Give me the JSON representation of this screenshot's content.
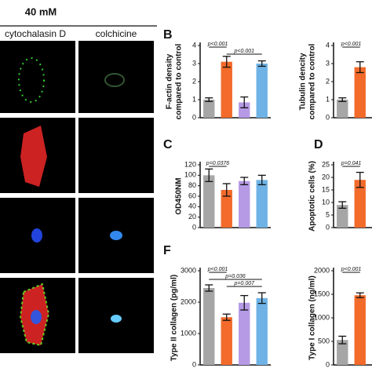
{
  "figure": {
    "concentration": "40 mM",
    "columns": [
      "cytochalasin D",
      "colchicine"
    ]
  },
  "chart_data": [
    {
      "type": "bar",
      "panel": "B",
      "ylabel": [
        "F-actin density",
        "compared to control"
      ],
      "ylim": [
        0,
        4
      ],
      "yticks": [
        0,
        1,
        2,
        3,
        4
      ],
      "values": [
        1.0,
        3.1,
        0.85,
        3.0
      ],
      "errors": [
        0.1,
        0.3,
        0.3,
        0.15
      ],
      "colors": [
        "#a6a6a6",
        "#f26b2b",
        "#b69ae6",
        "#6fb3e6"
      ],
      "annotations": [
        "p<0.001",
        "p<0.001"
      ]
    },
    {
      "type": "bar",
      "ylabel": [
        "Tubulin dencity",
        "compared to control"
      ],
      "ylim": [
        0,
        4
      ],
      "yticks": [
        0,
        1,
        2,
        3,
        4
      ],
      "values": [
        1.0,
        2.8
      ],
      "errors": [
        0.1,
        0.3
      ],
      "colors": [
        "#a6a6a6",
        "#f26b2b"
      ],
      "annotations": [
        "p<0.001"
      ]
    },
    {
      "type": "bar",
      "panel": "C",
      "ylabel": [
        "OD450NM"
      ],
      "ylim": [
        0,
        120
      ],
      "yticks": [
        0,
        20,
        40,
        60,
        80,
        100,
        120
      ],
      "values": [
        100,
        72,
        89,
        91
      ],
      "errors": [
        12,
        12,
        7,
        9
      ],
      "colors": [
        "#a6a6a6",
        "#f26b2b",
        "#b69ae6",
        "#6fb3e6"
      ],
      "annotations": [
        "p=0.0376"
      ]
    },
    {
      "type": "bar",
      "panel": "D",
      "ylabel": [
        "Apoptotic cells (%)"
      ],
      "ylim": [
        0,
        25
      ],
      "yticks": [
        0,
        5,
        10,
        15,
        20,
        25
      ],
      "values": [
        9,
        19
      ],
      "errors": [
        1.3,
        3
      ],
      "colors": [
        "#a6a6a6",
        "#f26b2b"
      ],
      "annotations": [
        "p=0.041"
      ]
    },
    {
      "type": "bar",
      "panel": "F",
      "ylabel": [
        "Type II collagen (pg/ml)"
      ],
      "ylim": [
        0,
        3000
      ],
      "yticks": [
        0,
        1000,
        2000,
        3000
      ],
      "values": [
        2450,
        1520,
        1980,
        2130
      ],
      "errors": [
        100,
        100,
        230,
        170
      ],
      "colors": [
        "#a6a6a6",
        "#f26b2b",
        "#b69ae6",
        "#6fb3e6"
      ],
      "annotations": [
        "p<0.001",
        "p=0.036",
        "p=0.007"
      ]
    },
    {
      "type": "bar",
      "ylabel": [
        "Type I collagen (ng/ml)"
      ],
      "ylim": [
        0,
        2000
      ],
      "yticks": [
        0,
        500,
        1000,
        1500,
        2000
      ],
      "values": [
        530,
        1480
      ],
      "errors": [
        80,
        50
      ],
      "colors": [
        "#a6a6a6",
        "#f26b2b"
      ],
      "annotations": [
        "p<0.001"
      ]
    }
  ]
}
